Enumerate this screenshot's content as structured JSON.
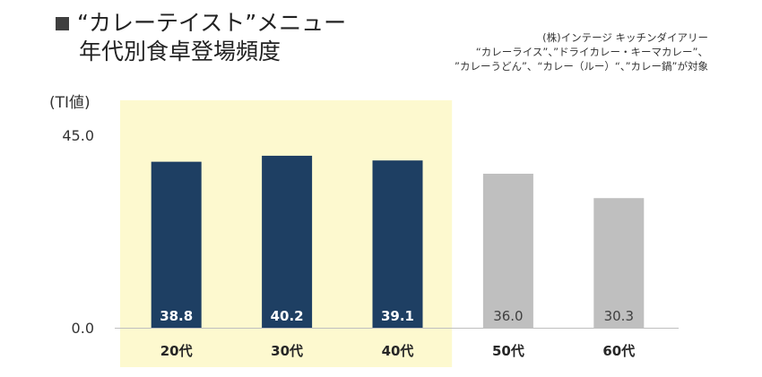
{
  "title": {
    "line1": "“カレーテイスト”メニュー",
    "line2": "年代別食卓登場頻度"
  },
  "source": {
    "line1": "(株)インテージ キッチンダイアリー",
    "line2": "“カレーライス”、”ドライカレー・キーマカレー”、",
    "line3": "”カレーうどん”、“カレー（ルー）“、”カレー鍋”が対象"
  },
  "colors": {
    "highlight_band": "#fdf9cf",
    "bar_primary": "#1e3f63",
    "bar_secondary": "#bfbfbf",
    "label_on_primary": "#ffffff",
    "label_on_secondary": "#404040",
    "axis_line": "#bfbfbf"
  },
  "chart_data": {
    "type": "bar",
    "ylabel": "(TI値)",
    "ylim": [
      0,
      45
    ],
    "yticks": [
      "0.0",
      "45.0"
    ],
    "categories": [
      "20代",
      "30代",
      "40代",
      "50代",
      "60代"
    ],
    "values": [
      38.8,
      40.2,
      39.1,
      36.0,
      30.3
    ],
    "value_labels": [
      "38.8",
      "40.2",
      "39.1",
      "36.0",
      "30.3"
    ],
    "highlighted": [
      true,
      true,
      true,
      false,
      false
    ],
    "grid": false,
    "legend": "none"
  }
}
